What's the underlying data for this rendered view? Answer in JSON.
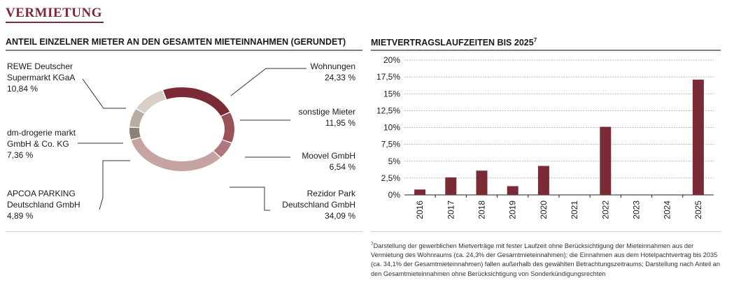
{
  "page": {
    "title": "VERMIETUNG"
  },
  "donut_section": {
    "title": "ANTEIL EINZELNER MIETER AN DEN GESAMTEN MIETEINNAHMEN (GERUNDET)"
  },
  "bar_section": {
    "title_main": "MIETVERTRAGSLAUFZEITEN BIS ",
    "title_year": "2025",
    "title_sup": "7"
  },
  "footnote": {
    "marker": "7",
    "text": "Darstellung der gewerblichen Mietverträge mit fester Laufzeit ohne Berücksichtigung der Mieteinnahmen aus der Vermietung des Wohnraums (ca. 24,3% der Gesamtmieteinnahmen); die Einnahmen aus dem Hotelpachtvertrag bis 2035 (ca. 34,1% der Gesamtmieteinnahmen) fallen außerhalb des gewählten Betrachtungszeitraums; Darstellung nach Anteil an den Gesamtmieteinnahmen ohne Berücksichtigung von Sonderkündigungsrechten"
  },
  "chart_data": [
    {
      "type": "pie",
      "variant": "donut",
      "title": "ANTEIL EINZELNER MIETER AN DEN GESAMTEN MIETEINNAHMEN (GERUNDET)",
      "slices": [
        {
          "label_lines": [
            "Wohnungen"
          ],
          "value_label": "24,33 %",
          "value": 24.33,
          "color": "#7b2b36"
        },
        {
          "label_lines": [
            "sonstige Mieter"
          ],
          "value_label": "11,95 %",
          "value": 11.95,
          "color": "#9a5158"
        },
        {
          "label_lines": [
            "Moovel GmbH"
          ],
          "value_label": "6,54 %",
          "value": 6.54,
          "color": "#b0787c"
        },
        {
          "label_lines": [
            "Rezidor Park",
            "Deutschland GmbH"
          ],
          "value_label": "34,09 %",
          "value": 34.09,
          "color": "#c7a3a2"
        },
        {
          "label_lines": [
            "APCOA PARKING",
            "Deutschland GmbH"
          ],
          "value_label": "4,89 %",
          "value": 4.89,
          "color": "#8a8274"
        },
        {
          "label_lines": [
            "dm-drogerie markt",
            "GmbH & Co. KG"
          ],
          "value_label": "7,36 %",
          "value": 7.36,
          "color": "#b8afa2"
        },
        {
          "label_lines": [
            "REWE Deutscher",
            "Supermarkt KGaA"
          ],
          "value_label": "10,84 %",
          "value": 10.84,
          "color": "#d8d0c6"
        }
      ]
    },
    {
      "type": "bar",
      "title": "MIETVERTRAGSLAUFZEITEN BIS 2025",
      "categories": [
        "2016",
        "2017",
        "2018",
        "2019",
        "2020",
        "2021",
        "2022",
        "2023",
        "2024",
        "2025"
      ],
      "values": [
        0.8,
        2.6,
        3.6,
        1.3,
        4.3,
        0,
        10.1,
        0,
        0,
        17.1
      ],
      "ylim": [
        0,
        20
      ],
      "yticks": [
        0,
        2.5,
        5,
        7.5,
        10,
        12.5,
        15,
        17.5,
        20
      ],
      "ytick_labels": [
        "0%",
        "2,5%",
        "5%",
        "7,5%",
        "10%",
        "12,5%",
        "15%",
        "17,5%",
        "20%"
      ],
      "grid": "dotted-horizontal",
      "bar_color": "#7b2b36"
    }
  ]
}
